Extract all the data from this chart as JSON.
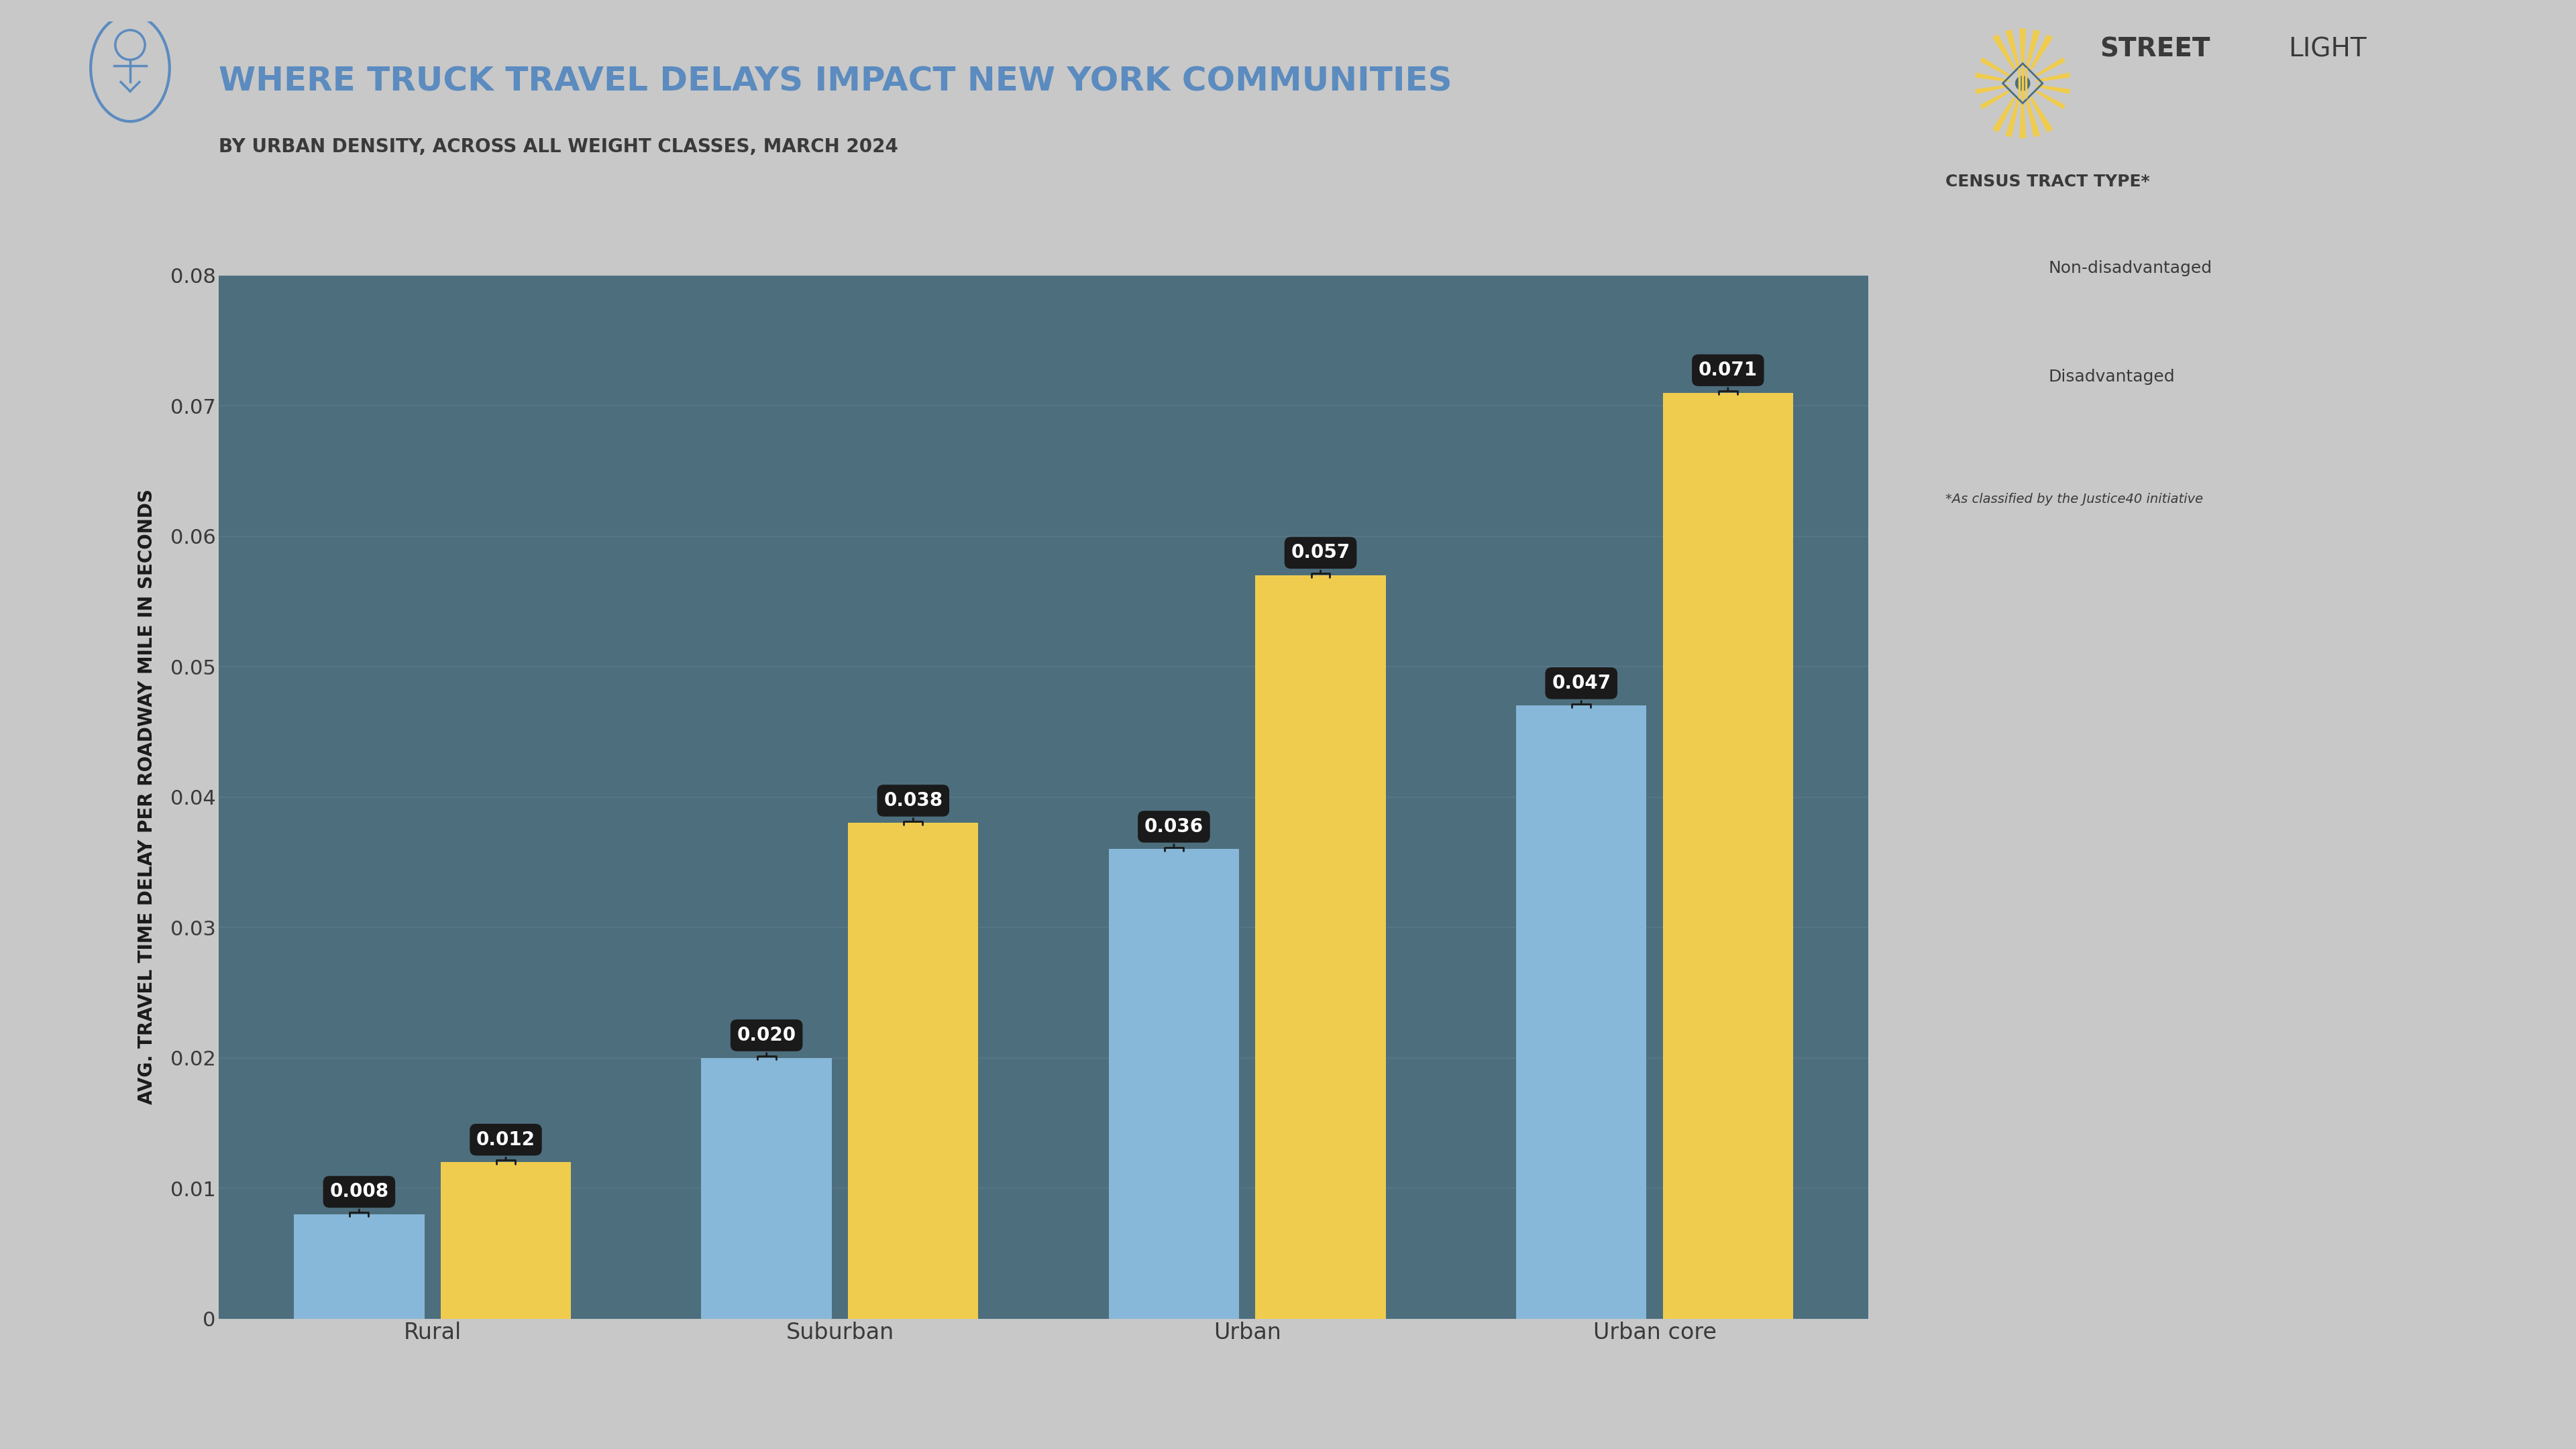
{
  "title": "WHERE TRUCK TRAVEL DELAYS IMPACT NEW YORK COMMUNITIES",
  "subtitle": "BY URBAN DENSITY, ACROSS ALL WEIGHT CLASSES, MARCH 2024",
  "ylabel": "AVG. TRAVEL TIME DELAY PER ROADWAY MILE IN SECONDS",
  "categories": [
    "Rural",
    "Suburban",
    "Urban",
    "Urban core"
  ],
  "non_disadvantaged": [
    0.008,
    0.02,
    0.036,
    0.047
  ],
  "disadvantaged": [
    0.012,
    0.038,
    0.057,
    0.071
  ],
  "bar_color_non_disadv": "#87b8d9",
  "bar_color_disadv": "#f0cc4e",
  "background_color": "#4d6e7d",
  "outer_bg_color": "#c8c8c8",
  "title_color": "#5b8bbf",
  "subtitle_color": "#3a3a3a",
  "ylabel_color": "#1a1a1a",
  "tick_label_color": "#3a3a3a",
  "tick_color": "#aaaaaa",
  "grid_color": "#567585",
  "ylim": [
    0,
    0.08
  ],
  "yticks": [
    0,
    0.01,
    0.02,
    0.03,
    0.04,
    0.05,
    0.06,
    0.07,
    0.08
  ],
  "legend_title": "CENSUS TRACT TYPE*",
  "legend_labels": [
    "Non-disadvantaged",
    "Disadvantaged"
  ],
  "legend_note": "*As classified by the Justice40 initiative",
  "bar_width": 0.32,
  "annotation_bg": "#1a1a1a",
  "annotation_text_color": "#ffffff",
  "streetlight_bold_color": "#3a3a3a",
  "streetlight_light_color": "#3a3a3a",
  "gold_color": "#f0cc4e"
}
